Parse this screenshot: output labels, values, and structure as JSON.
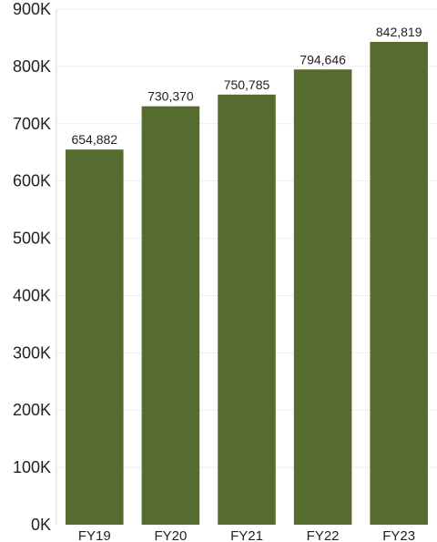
{
  "chart_data": {
    "type": "bar",
    "categories": [
      "FY19",
      "FY20",
      "FY21",
      "FY22",
      "FY23"
    ],
    "values": [
      654882,
      730370,
      750785,
      794646,
      842819
    ],
    "data_labels": [
      "654,882",
      "730,370",
      "750,785",
      "794,646",
      "842,819"
    ],
    "ylim": [
      0,
      900000
    ],
    "y_ticks": [
      0,
      100000,
      200000,
      300000,
      400000,
      500000,
      600000,
      700000,
      800000,
      900000
    ],
    "y_tick_labels": [
      "0K",
      "100K",
      "200K",
      "300K",
      "400K",
      "500K",
      "600K",
      "700K",
      "800K",
      "900K"
    ],
    "grid": true,
    "bar_color": "#556b2f",
    "title": "",
    "xlabel": "",
    "ylabel": ""
  }
}
